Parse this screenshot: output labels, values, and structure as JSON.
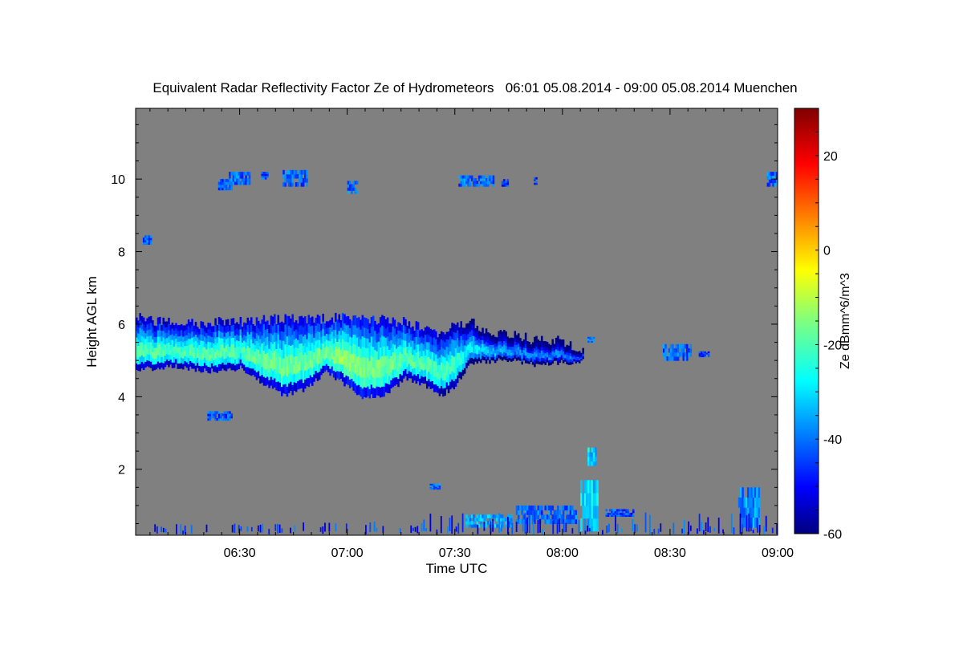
{
  "chart_data": {
    "type": "heatmap",
    "title": "Equivalent Radar Reflectivity Factor Ze of Hydrometeors   06:01 05.08.2014 - 09:00 05.08.2014 Muenchen",
    "xlabel": "Time UTC",
    "ylabel": "Height AGL km",
    "xlim_minutes": [
      361,
      540
    ],
    "ylim": [
      0.18,
      11.95
    ],
    "xticks": [
      {
        "t": 390,
        "label": "06:30"
      },
      {
        "t": 420,
        "label": "07:00"
      },
      {
        "t": 450,
        "label": "07:30"
      },
      {
        "t": 480,
        "label": "08:00"
      },
      {
        "t": 510,
        "label": "08:30"
      },
      {
        "t": 540,
        "label": "09:00"
      }
    ],
    "yticks": [
      {
        "v": 2,
        "label": "2"
      },
      {
        "v": 4,
        "label": "4"
      },
      {
        "v": 6,
        "label": "6"
      },
      {
        "v": 8,
        "label": "8"
      },
      {
        "v": 10,
        "label": "10"
      }
    ],
    "colorbar": {
      "label": "Ze dBmm^6/m^3",
      "range": [
        -60,
        30
      ],
      "ticks": [
        {
          "v": 20,
          "label": "20"
        },
        {
          "v": 0,
          "label": "0"
        },
        {
          "v": -20,
          "label": "-20"
        },
        {
          "v": -40,
          "label": "-40"
        },
        {
          "v": -60,
          "label": "-60"
        }
      ]
    },
    "background_color": "#808080",
    "main_layer": {
      "profile": [
        [
          361,
          4.75,
          6.35,
          -12
        ],
        [
          366,
          4.8,
          6.2,
          -12
        ],
        [
          372,
          4.85,
          6.2,
          -13
        ],
        [
          378,
          4.75,
          6.15,
          -12
        ],
        [
          384,
          4.7,
          6.2,
          -12
        ],
        [
          390,
          4.8,
          6.2,
          -12
        ],
        [
          396,
          4.4,
          6.25,
          -10
        ],
        [
          402,
          4.05,
          6.3,
          -9
        ],
        [
          408,
          4.2,
          6.25,
          -10
        ],
        [
          414,
          4.7,
          6.3,
          -9
        ],
        [
          420,
          4.3,
          6.35,
          -6
        ],
        [
          424,
          4.0,
          6.3,
          -7
        ],
        [
          430,
          4.05,
          6.25,
          -9
        ],
        [
          436,
          4.5,
          6.2,
          -11
        ],
        [
          442,
          4.3,
          6.0,
          -12
        ],
        [
          446,
          4.05,
          5.9,
          -13
        ],
        [
          450,
          4.3,
          6.1,
          -14
        ],
        [
          454,
          4.9,
          6.2,
          -20
        ],
        [
          460,
          5.0,
          5.95,
          -25
        ],
        [
          466,
          5.0,
          5.9,
          -28
        ],
        [
          472,
          4.9,
          5.7,
          -30
        ],
        [
          478,
          4.95,
          5.7,
          -30
        ],
        [
          484,
          4.95,
          5.5,
          -33
        ],
        [
          486,
          5.15,
          5.35,
          -38
        ]
      ]
    },
    "cells": [
      {
        "t0": 363,
        "t1": 365.5,
        "h0": 8.2,
        "h1": 8.45,
        "ze": -40
      },
      {
        "t0": 384,
        "t1": 388,
        "h0": 9.7,
        "h1": 10.0,
        "ze": -42
      },
      {
        "t0": 387,
        "t1": 393,
        "h0": 9.85,
        "h1": 10.2,
        "ze": -40
      },
      {
        "t0": 396,
        "t1": 398,
        "h0": 10.0,
        "h1": 10.2,
        "ze": -42
      },
      {
        "t0": 402,
        "t1": 409,
        "h0": 9.8,
        "h1": 10.25,
        "ze": -40
      },
      {
        "t0": 420,
        "t1": 423,
        "h0": 9.6,
        "h1": 9.95,
        "ze": -40
      },
      {
        "t0": 451,
        "t1": 461,
        "h0": 9.8,
        "h1": 10.1,
        "ze": -40
      },
      {
        "t0": 463,
        "t1": 465,
        "h0": 9.8,
        "h1": 10.0,
        "ze": -44
      },
      {
        "t0": 472,
        "t1": 473,
        "h0": 9.85,
        "h1": 10.05,
        "ze": -44
      },
      {
        "t0": 537,
        "t1": 540,
        "h0": 9.8,
        "h1": 10.2,
        "ze": -40
      },
      {
        "t0": 381,
        "t1": 388,
        "h0": 3.35,
        "h1": 3.6,
        "ze": -42
      },
      {
        "t0": 487,
        "t1": 489,
        "h0": 5.5,
        "h1": 5.65,
        "ze": -40
      },
      {
        "t0": 508,
        "t1": 516,
        "h0": 5.0,
        "h1": 5.45,
        "ze": -40
      },
      {
        "t0": 518,
        "t1": 521,
        "h0": 5.1,
        "h1": 5.25,
        "ze": -44
      },
      {
        "t0": 487,
        "t1": 489.5,
        "h0": 2.1,
        "h1": 2.6,
        "ze": -30
      },
      {
        "t0": 485,
        "t1": 490,
        "h0": 0.3,
        "h1": 1.7,
        "ze": -30
      },
      {
        "t0": 443,
        "t1": 446,
        "h0": 1.45,
        "h1": 1.6,
        "ze": -40
      },
      {
        "t0": 492,
        "t1": 500,
        "h0": 0.7,
        "h1": 0.9,
        "ze": -42
      },
      {
        "t0": 529,
        "t1": 535,
        "h0": 0.4,
        "h1": 1.5,
        "ze": -36
      },
      {
        "t0": 453,
        "t1": 466,
        "h0": 0.4,
        "h1": 0.75,
        "ze": -34
      },
      {
        "t0": 467,
        "t1": 484,
        "h0": 0.5,
        "h1": 1.0,
        "ze": -40
      }
    ],
    "surface_clutter": {
      "h0": 0.2,
      "h1": 0.7,
      "ze": -45
    }
  }
}
